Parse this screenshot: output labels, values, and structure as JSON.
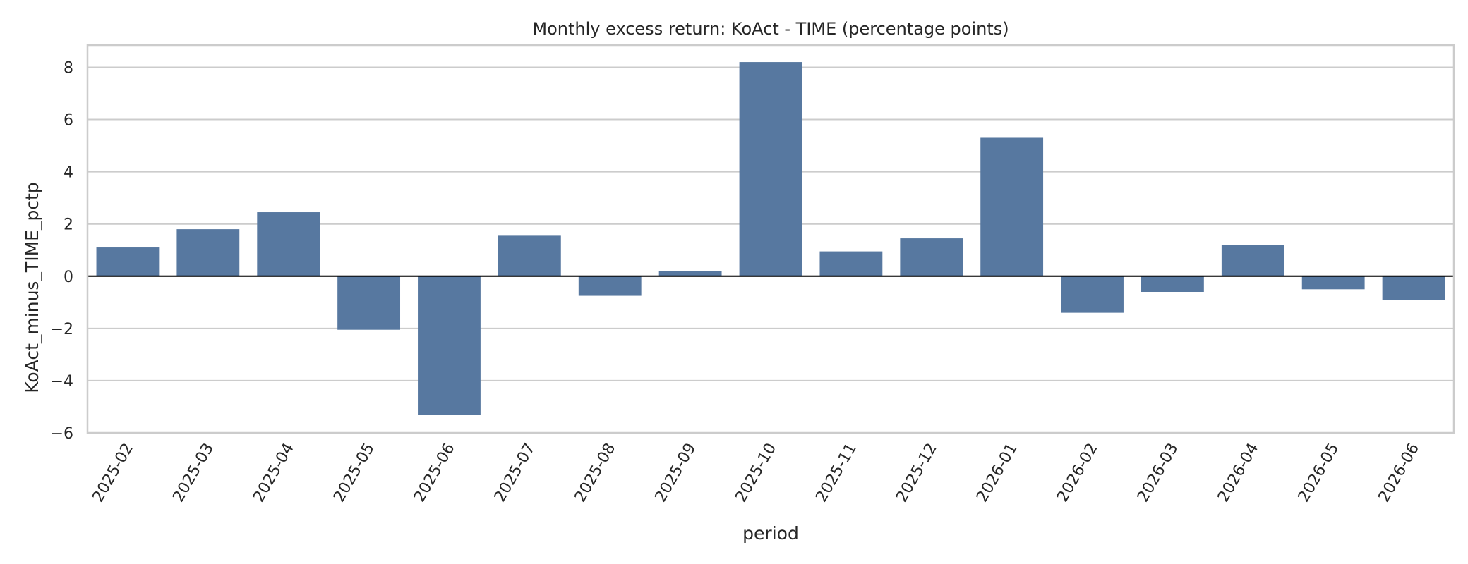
{
  "chart_data": {
    "type": "bar",
    "title": "Monthly excess return: KoAct - TIME (percentage points)",
    "xlabel": "period",
    "ylabel": "KoAct_minus_TIME_pctp",
    "categories": [
      "2025-02",
      "2025-03",
      "2025-04",
      "2025-05",
      "2025-06",
      "2025-07",
      "2025-08",
      "2025-09",
      "2025-10",
      "2025-11",
      "2025-12",
      "2026-01",
      "2026-02",
      "2026-03",
      "2026-04",
      "2026-05",
      "2026-06"
    ],
    "values": [
      1.1,
      1.8,
      2.45,
      -2.05,
      -5.3,
      1.55,
      -0.75,
      0.2,
      8.2,
      0.95,
      1.45,
      5.3,
      -1.4,
      -0.6,
      1.2,
      -0.5,
      -0.9
    ],
    "ylim": [
      -6,
      8.85
    ],
    "yticks": [
      -6,
      -4,
      -2,
      0,
      2,
      4,
      6,
      8
    ],
    "ytick_labels": [
      "−6",
      "−4",
      "−2",
      "0",
      "2",
      "4",
      "6",
      "8"
    ],
    "bar_color": "#5778a0",
    "grid": true,
    "zero_line": true
  }
}
